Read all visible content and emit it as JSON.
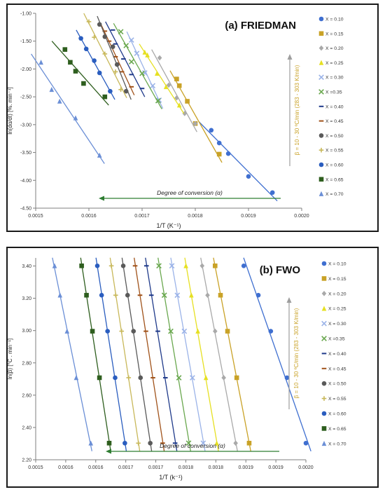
{
  "series_labels": [
    "X = 0.10",
    "X = 0.15",
    "X = 0.20",
    "X = 0.25",
    "X = 0.30",
    "X =0.35",
    "X = 0.40",
    "X = 0.45",
    "X = 0.50",
    "X = 0.55",
    "X = 0.60",
    "X = 0.65",
    "X = 0.70"
  ],
  "series_colors": [
    "#3f6fd0",
    "#c9a227",
    "#a9a9a9",
    "#e6e022",
    "#9bb3e8",
    "#6aa84f",
    "#1f3a8a",
    "#a0521a",
    "#5a5a5a",
    "#c8b85a",
    "#2a5dbf",
    "#2e5e1e",
    "#6b8fd6"
  ],
  "series_markers": [
    "circle",
    "square",
    "diamond",
    "triangle",
    "x",
    "x",
    "dash",
    "dash",
    "circle",
    "plus",
    "circle",
    "square",
    "triangle"
  ],
  "chart_data": [
    {
      "type": "scatter",
      "title": "(a) FRIEDMAN",
      "xlabel": "1/T (K⁻¹)",
      "ylabel": "ln(dα/dt) [%. min⁻¹]",
      "xlim": [
        0.0015,
        0.002
      ],
      "ylim": [
        -4.5,
        -1.0
      ],
      "xticks": [
        "0.0015",
        "0.0016",
        "0.0017",
        "0.0018",
        "0.0019",
        "0.0020"
      ],
      "yticks": [
        "-1.00",
        "-1.50",
        "-2.00",
        "-2.50",
        "-3.00",
        "-3.50",
        "-4.00",
        "-4.50"
      ],
      "grid": false,
      "legend_position": "right",
      "arrow_label": "Degree of conversion (α)",
      "beta_label": "β = 10 - 30 ºC/min (283 - 303 K/min)",
      "series": [
        {
          "name": "X = 0.10",
          "x": [
            0.00183,
            0.001845,
            0.001862,
            0.0019,
            0.001945
          ],
          "y": [
            -3.1,
            -3.33,
            -3.52,
            -3.93,
            -4.22
          ]
        },
        {
          "name": "X = 0.15",
          "x": [
            0.001765,
            0.00177,
            0.001785,
            0.0018,
            0.001845
          ],
          "y": [
            -2.18,
            -2.3,
            -2.58,
            -2.98,
            -3.53
          ]
        },
        {
          "name": "X = 0.20",
          "x": [
            0.001733,
            0.00175,
            0.001765,
            0.00178,
            0.0018
          ],
          "y": [
            -1.8,
            -2.29,
            -2.52,
            -2.8,
            -2.98
          ]
        },
        {
          "name": "X = 0.25",
          "x": [
            0.001705,
            0.00171,
            0.001728,
            0.001745,
            0.00177
          ],
          "y": [
            -1.7,
            -1.75,
            -2.08,
            -2.32,
            -2.65
          ]
        },
        {
          "name": "X = 0.30",
          "x": [
            0.00168,
            0.00169,
            0.001705,
            0.00172,
            0.001732
          ],
          "y": [
            -1.48,
            -1.72,
            -2.07,
            -2.3,
            -2.56
          ]
        },
        {
          "name": "X =0.35",
          "x": [
            0.00166,
            0.00167,
            0.00168,
            0.0017,
            0.00173
          ],
          "y": [
            -1.33,
            -1.58,
            -1.87,
            -2.08,
            -2.57
          ]
        },
        {
          "name": "X = 0.40",
          "x": [
            0.001645,
            0.00165,
            0.001665,
            0.00168,
            0.0017
          ],
          "y": [
            -1.3,
            -1.55,
            -1.82,
            -2.1,
            -2.35
          ]
        },
        {
          "name": "X = 0.45",
          "x": [
            0.00163,
            0.001638,
            0.00165,
            0.001662,
            0.00168
          ],
          "y": [
            -1.32,
            -1.5,
            -1.78,
            -2.05,
            -2.32
          ]
        },
        {
          "name": "X = 0.50",
          "x": [
            0.00162,
            0.00163,
            0.001645,
            0.001653,
            0.00167
          ],
          "y": [
            -1.2,
            -1.42,
            -1.6,
            -1.92,
            -2.4
          ]
        },
        {
          "name": "X = 0.55",
          "x": [
            0.0016,
            0.00161,
            0.00163,
            0.00165,
            0.00166
          ],
          "y": [
            -1.15,
            -1.43,
            -1.73,
            -2.05,
            -2.37
          ]
        },
        {
          "name": "X = 0.60",
          "x": [
            0.001585,
            0.001595,
            0.00161,
            0.00162,
            0.00164
          ],
          "y": [
            -1.45,
            -1.64,
            -1.85,
            -2.07,
            -2.4
          ]
        },
        {
          "name": "X = 0.65",
          "x": [
            0.001555,
            0.001565,
            0.001575,
            0.00159,
            0.00163
          ],
          "y": [
            -1.65,
            -1.88,
            -2.04,
            -2.26,
            -2.5
          ]
        },
        {
          "name": "X = 0.70",
          "x": [
            0.00151,
            0.00153,
            0.001545,
            0.001575,
            0.00162
          ],
          "y": [
            -1.88,
            -2.37,
            -2.58,
            -2.88,
            -3.55
          ]
        }
      ]
    },
    {
      "type": "scatter",
      "title": "(b) FWO",
      "xlabel": "1/T (k⁻¹)",
      "ylabel": "ln(β) [°C . min⁻¹]",
      "xlim": [
        0.0015,
        0.002
      ],
      "ylim": [
        2.2,
        3.45
      ],
      "xticks": [
        "0.0015",
        "0.0016",
        "0.0016",
        "0.0017",
        "0.0017",
        "0.0018",
        "0.0018",
        "0.0019",
        "0.0019",
        "0.0020"
      ],
      "yticks": [
        "3.40",
        "3.20",
        "3.00",
        "2.80",
        "2.60",
        "2.40",
        "2.20"
      ],
      "grid": false,
      "legend_position": "right",
      "arrow_label": "Degree of conversion (α)",
      "beta_label": "β = 10 - 30 ºC/min (283 - 303 K/min)",
      "beta_levels": [
        3.401,
        3.219,
        2.996,
        2.708,
        2.303
      ],
      "series": [
        {
          "name": "X = 0.10",
          "x": [
            0.001885,
            0.001912,
            0.001935,
            0.001965,
            0.002
          ]
        },
        {
          "name": "X = 0.15",
          "x": [
            0.001832,
            0.001842,
            0.001855,
            0.001872,
            0.001895
          ]
        },
        {
          "name": "X = 0.20",
          "x": [
            0.001808,
            0.001818,
            0.001832,
            0.001848,
            0.00187
          ]
        },
        {
          "name": "X = 0.25",
          "x": [
            0.001778,
            0.001788,
            0.0018,
            0.001815,
            0.001835
          ]
        },
        {
          "name": "X = 0.30",
          "x": [
            0.001752,
            0.001762,
            0.001775,
            0.00179,
            0.00181
          ]
        },
        {
          "name": "X =0.35",
          "x": [
            0.001728,
            0.001738,
            0.00175,
            0.001765,
            0.001783
          ]
        },
        {
          "name": "X = 0.40",
          "x": [
            0.001705,
            0.001714,
            0.001726,
            0.00174,
            0.001758
          ]
        },
        {
          "name": "X = 0.45",
          "x": [
            0.001684,
            0.001693,
            0.001704,
            0.001717,
            0.001735
          ]
        },
        {
          "name": "X = 0.50",
          "x": [
            0.001662,
            0.00167,
            0.001681,
            0.001694,
            0.001712
          ]
        },
        {
          "name": "X = 0.55",
          "x": [
            0.00164,
            0.001648,
            0.001659,
            0.001672,
            0.00169
          ]
        },
        {
          "name": "X = 0.60",
          "x": [
            0.001614,
            0.001622,
            0.001633,
            0.001647,
            0.001665
          ]
        },
        {
          "name": "X = 0.65",
          "x": [
            0.001585,
            0.001594,
            0.001605,
            0.001618,
            0.001636
          ]
        },
        {
          "name": "X = 0.70",
          "x": [
            0.001535,
            0.001545,
            0.001558,
            0.001575,
            0.001602
          ]
        }
      ]
    }
  ]
}
